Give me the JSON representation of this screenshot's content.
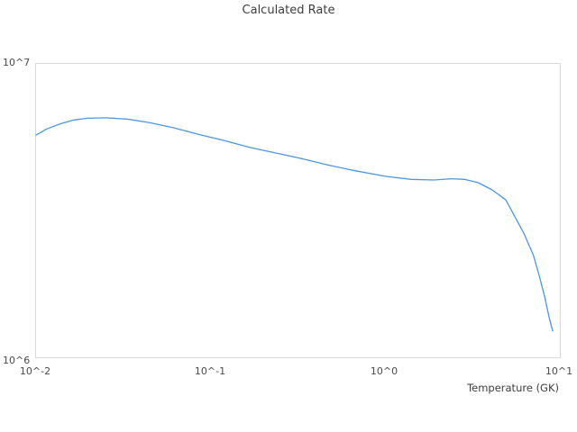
{
  "chart_data": {
    "type": "line",
    "title": "Calculated Rate",
    "xlabel": "Temperature (GK)",
    "ylabel": "",
    "x_scale": "log",
    "y_scale": "log",
    "xlim": [
      0.01,
      10
    ],
    "ylim": [
      1000000,
      10000000
    ],
    "x_ticks": [
      "10^-2",
      "10^-1",
      "10^0",
      "10^1"
    ],
    "y_ticks": [
      "10^6",
      "10^7"
    ],
    "grid": false,
    "legend": "none",
    "line_color": "#4d96e2",
    "border_color": "#d9d9d9",
    "series": [
      {
        "name": "Calculated Rate",
        "points": [
          [
            0.01,
            5720000
          ],
          [
            0.0115,
            6000000
          ],
          [
            0.0138,
            6250000
          ],
          [
            0.0165,
            6440000
          ],
          [
            0.0197,
            6530000
          ],
          [
            0.025,
            6550000
          ],
          [
            0.0336,
            6480000
          ],
          [
            0.045,
            6300000
          ],
          [
            0.061,
            6060000
          ],
          [
            0.0866,
            5740000
          ],
          [
            0.124,
            5450000
          ],
          [
            0.166,
            5200000
          ],
          [
            0.225,
            5000000
          ],
          [
            0.32,
            4780000
          ],
          [
            0.456,
            4540000
          ],
          [
            0.65,
            4340000
          ],
          [
            1.0,
            4140000
          ],
          [
            1.41,
            4040000
          ],
          [
            1.9,
            4020000
          ],
          [
            2.4,
            4060000
          ],
          [
            2.86,
            4040000
          ],
          [
            3.4,
            3940000
          ],
          [
            4.1,
            3720000
          ],
          [
            4.9,
            3440000
          ],
          [
            5.5,
            3030000
          ],
          [
            6.25,
            2630000
          ],
          [
            7.05,
            2230000
          ],
          [
            7.65,
            1880000
          ],
          [
            8.2,
            1600000
          ],
          [
            8.7,
            1360000
          ],
          [
            9.1,
            1230000
          ]
        ]
      }
    ]
  }
}
